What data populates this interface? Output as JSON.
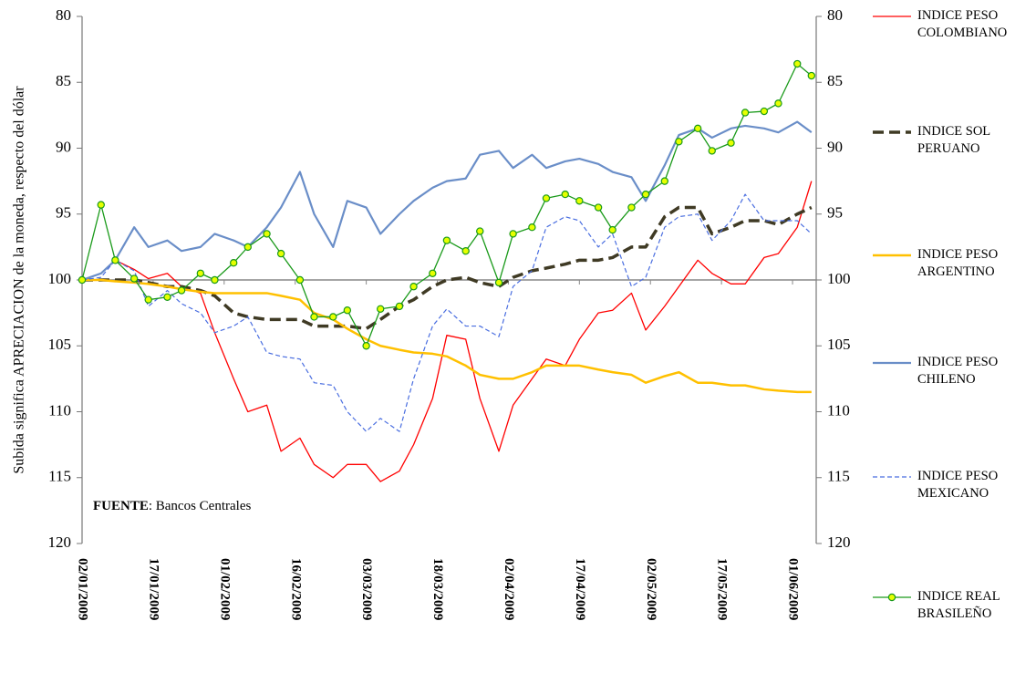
{
  "chart_data": {
    "type": "line",
    "y_label": "Subida significa APRECIACION  de la moneda, respecto del dólar",
    "annotation": {
      "bold": "FUENTE",
      "text": ": Bancos Centrales"
    },
    "x": [
      "02/01/2009",
      "06/01/2009",
      "09/01/2009",
      "13/01/2009",
      "16/01/2009",
      "20/01/2009",
      "23/01/2009",
      "27/01/2009",
      "30/01/2009",
      "03/02/2009",
      "06/02/2009",
      "10/02/2009",
      "13/02/2009",
      "17/02/2009",
      "20/02/2009",
      "24/02/2009",
      "27/02/2009",
      "03/03/2009",
      "06/03/2009",
      "10/03/2009",
      "13/03/2009",
      "17/03/2009",
      "20/03/2009",
      "24/03/2009",
      "27/03/2009",
      "31/03/2009",
      "03/04/2009",
      "07/04/2009",
      "10/04/2009",
      "14/04/2009",
      "17/04/2009",
      "21/04/2009",
      "24/04/2009",
      "28/04/2009",
      "01/05/2009",
      "05/05/2009",
      "08/05/2009",
      "12/05/2009",
      "15/05/2009",
      "19/05/2009",
      "22/05/2009",
      "26/05/2009",
      "29/05/2009",
      "02/06/2009",
      "05/06/2009"
    ],
    "xlim": [
      "02/01/2009",
      "06/06/2009"
    ],
    "xticks": [
      "02/01/2009",
      "17/01/2009",
      "01/02/2009",
      "16/02/2009",
      "03/03/2009",
      "18/03/2009",
      "02/04/2009",
      "17/04/2009",
      "02/05/2009",
      "17/05/2009",
      "01/06/2009"
    ],
    "ylim": [
      80,
      120
    ],
    "yticks": [
      80,
      85,
      90,
      95,
      100,
      105,
      110,
      115,
      120
    ],
    "y2lim": [
      80,
      120
    ],
    "y2ticks": [
      80,
      85,
      90,
      95,
      100,
      105,
      110,
      115,
      120
    ],
    "y_reversed": true,
    "x_axis_at": 100,
    "series": [
      {
        "name": "INDICE PESO COLOMBIANO",
        "color": "#ff0000",
        "width": 1.3,
        "values": [
          100,
          99.5,
          98.5,
          99.2,
          99.9,
          99.5,
          100.5,
          101,
          104,
          107.5,
          110,
          109.5,
          113,
          112,
          114,
          115,
          114,
          114,
          115.3,
          114.5,
          112.5,
          109,
          104.2,
          104.5,
          109,
          113,
          109.5,
          107.5,
          106,
          106.5,
          104.5,
          102.5,
          102.3,
          101,
          103.8,
          102,
          100.5,
          98.5,
          99.5,
          100.3,
          100.3,
          98.3,
          98,
          96,
          92.5
        ]
      },
      {
        "name": "INDICE SOL PERUANO",
        "color": "#3f3a24",
        "width": 3.5,
        "dash": true,
        "values": [
          100,
          100,
          100,
          100,
          100.2,
          100.5,
          100.5,
          100.8,
          101.2,
          102.5,
          102.8,
          103,
          103,
          103,
          103.5,
          103.5,
          103.5,
          103.7,
          103,
          102,
          101.5,
          100.5,
          100,
          99.8,
          100.2,
          100.5,
          99.8,
          99.3,
          99.1,
          98.8,
          98.5,
          98.5,
          98.3,
          97.5,
          97.5,
          95.2,
          94.5,
          94.5,
          96.5,
          96,
          95.5,
          95.5,
          95.8,
          95,
          94.5
        ]
      },
      {
        "name": "INDICE PESO ARGENTINO",
        "color": "#ffc000",
        "width": 2.5,
        "values": [
          100,
          100,
          100.1,
          100.2,
          100.3,
          100.5,
          100.7,
          100.9,
          101,
          101,
          101,
          101,
          101.2,
          101.5,
          102.5,
          103,
          103.7,
          104.5,
          105,
          105.3,
          105.5,
          105.6,
          105.8,
          106.5,
          107.2,
          107.5,
          107.5,
          107,
          106.5,
          106.5,
          106.5,
          106.8,
          107,
          107.2,
          107.8,
          107.3,
          107,
          107.8,
          107.8,
          108,
          108,
          108.3,
          108.4,
          108.5,
          108.5
        ]
      },
      {
        "name": "INDICE PESO CHILENO",
        "color": "#6a8ec8",
        "width": 2.2,
        "values": [
          100,
          99.5,
          98.5,
          96,
          97.5,
          97,
          97.8,
          97.5,
          96.5,
          97,
          97.5,
          96,
          94.5,
          91.8,
          95,
          97.5,
          94,
          94.5,
          96.5,
          95,
          94,
          93,
          92.5,
          92.3,
          90.5,
          90.2,
          91.5,
          90.5,
          91.5,
          91,
          90.8,
          91.2,
          91.8,
          92.2,
          94,
          91.3,
          89,
          88.5,
          89.2,
          88.5,
          88.3,
          88.5,
          88.8,
          88,
          88.8
        ]
      },
      {
        "name": "INDICE PESO MEXICANO",
        "color": "#4a6ee0",
        "width": 1.2,
        "dash": true,
        "values": [
          100,
          99.8,
          98.5,
          99.3,
          102,
          100.8,
          101.8,
          102.5,
          104,
          103.5,
          102.8,
          105.5,
          105.8,
          106,
          107.8,
          108,
          110,
          111.5,
          110.5,
          111.5,
          107.5,
          103.5,
          102.2,
          103.5,
          103.5,
          104.3,
          100.5,
          99.3,
          96,
          95.2,
          95.5,
          97.5,
          96.5,
          100.5,
          99.8,
          96,
          95.2,
          95,
          97,
          95.5,
          93.5,
          95.5,
          95.5,
          95.5,
          96.5
        ]
      },
      {
        "name": "INDICE REAL BRASILEÑO",
        "color": "#1a9a1a",
        "width": 1.3,
        "marker": true,
        "marker_color": "#e6ff00",
        "values": [
          100,
          94.3,
          98.5,
          99.9,
          101.5,
          101.3,
          100.8,
          99.5,
          100,
          98.7,
          97.5,
          96.5,
          98,
          100,
          102.8,
          102.8,
          102.3,
          105,
          102.2,
          102,
          100.5,
          99.5,
          97,
          97.8,
          96.3,
          100.2,
          96.5,
          96,
          93.8,
          93.5,
          94,
          94.5,
          96.2,
          94.5,
          93.5,
          92.5,
          89.5,
          88.5,
          90.2,
          89.6,
          87.3,
          87.2,
          86.6,
          83.6,
          84.5
        ]
      }
    ]
  }
}
